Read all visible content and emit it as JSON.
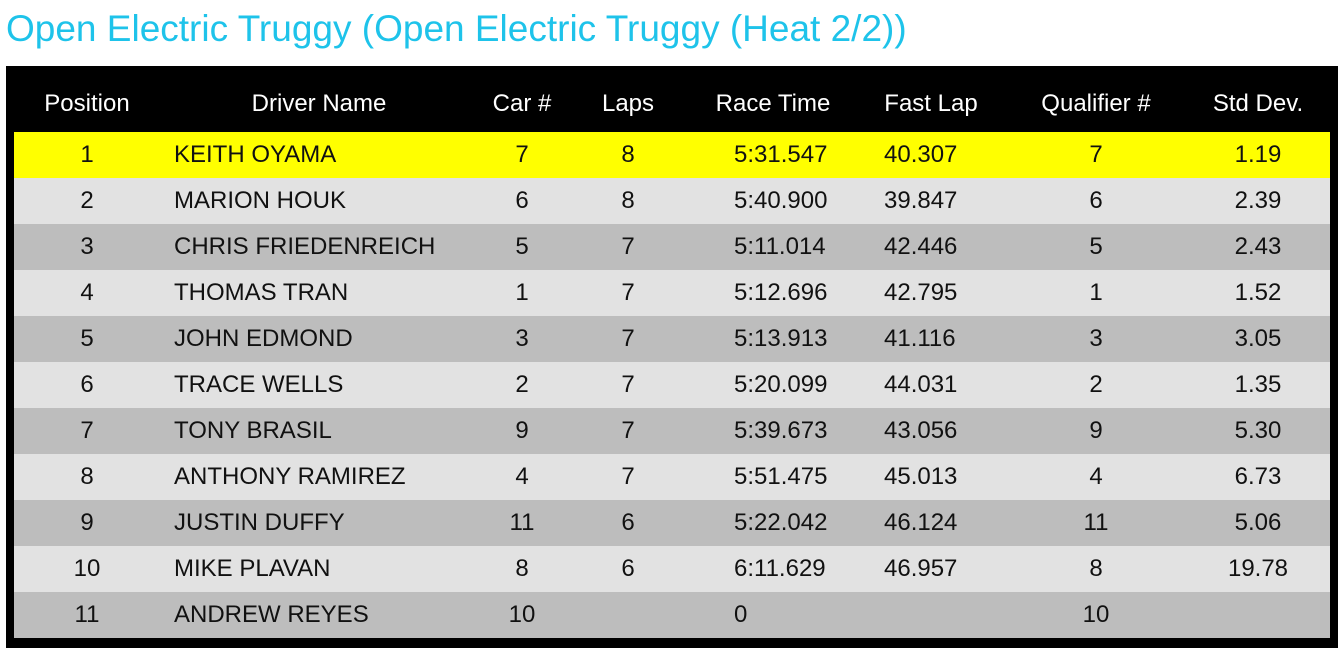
{
  "page": {
    "title": "Open Electric Truggy (Open Electric Truggy (Heat 2/2))"
  },
  "colors": {
    "title": "#1ec3ea",
    "header_bg": "#000000",
    "header_text": "#ffffff",
    "highlight_row": "#ffff00",
    "row_light": "#e2e2e2",
    "row_dark": "#bdbdbd"
  },
  "table": {
    "headers": {
      "position": "Position",
      "driver_name": "Driver Name",
      "car_number": "Car #",
      "laps": "Laps",
      "race_time": "Race Time",
      "fast_lap": "Fast Lap",
      "qualifier_number": "Qualifier #",
      "std_dev": "Std Dev."
    },
    "rows": [
      {
        "position": "1",
        "driver": "KEITH OYAMA",
        "car": "7",
        "laps": "8",
        "race_time": "5:31.547",
        "fast_lap": "40.307",
        "qualifier": "7",
        "std_dev": "1.19"
      },
      {
        "position": "2",
        "driver": "MARION HOUK",
        "car": "6",
        "laps": "8",
        "race_time": "5:40.900",
        "fast_lap": "39.847",
        "qualifier": "6",
        "std_dev": "2.39"
      },
      {
        "position": "3",
        "driver": "CHRIS FRIEDENREICH",
        "car": "5",
        "laps": "7",
        "race_time": "5:11.014",
        "fast_lap": "42.446",
        "qualifier": "5",
        "std_dev": "2.43"
      },
      {
        "position": "4",
        "driver": "THOMAS TRAN",
        "car": "1",
        "laps": "7",
        "race_time": "5:12.696",
        "fast_lap": "42.795",
        "qualifier": "1",
        "std_dev": "1.52"
      },
      {
        "position": "5",
        "driver": "JOHN EDMOND",
        "car": "3",
        "laps": "7",
        "race_time": "5:13.913",
        "fast_lap": "41.116",
        "qualifier": "3",
        "std_dev": "3.05"
      },
      {
        "position": "6",
        "driver": "TRACE WELLS",
        "car": "2",
        "laps": "7",
        "race_time": "5:20.099",
        "fast_lap": "44.031",
        "qualifier": "2",
        "std_dev": "1.35"
      },
      {
        "position": "7",
        "driver": "TONY BRASIL",
        "car": "9",
        "laps": "7",
        "race_time": "5:39.673",
        "fast_lap": "43.056",
        "qualifier": "9",
        "std_dev": "5.30"
      },
      {
        "position": "8",
        "driver": "ANTHONY RAMIREZ",
        "car": "4",
        "laps": "7",
        "race_time": "5:51.475",
        "fast_lap": "45.013",
        "qualifier": "4",
        "std_dev": "6.73"
      },
      {
        "position": "9",
        "driver": "JUSTIN DUFFY",
        "car": "11",
        "laps": "6",
        "race_time": "5:22.042",
        "fast_lap": "46.124",
        "qualifier": "11",
        "std_dev": "5.06"
      },
      {
        "position": "10",
        "driver": "MIKE PLAVAN",
        "car": "8",
        "laps": "6",
        "race_time": "6:11.629",
        "fast_lap": "46.957",
        "qualifier": "8",
        "std_dev": "19.78"
      },
      {
        "position": "11",
        "driver": "ANDREW REYES",
        "car": "10",
        "laps": "",
        "race_time": "0",
        "fast_lap": "",
        "qualifier": "10",
        "std_dev": ""
      }
    ]
  }
}
